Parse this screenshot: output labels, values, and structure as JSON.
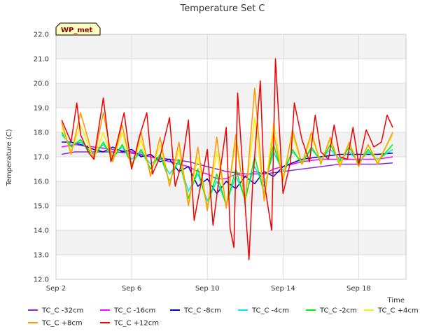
{
  "chart_data": {
    "type": "line",
    "title": "Temperature Set C",
    "xlabel": "Time",
    "ylabel": "Temperature (C)",
    "badge": "WP_met",
    "xlim": [
      0,
      18.5
    ],
    "ylim": [
      12.0,
      22.0
    ],
    "yticks": [
      "12.0",
      "13.0",
      "14.0",
      "15.0",
      "16.0",
      "17.0",
      "18.0",
      "19.0",
      "20.0",
      "21.0",
      "22.0"
    ],
    "xticks": [
      {
        "value": 0,
        "label": "Sep 2"
      },
      {
        "value": 4,
        "label": "Sep 6"
      },
      {
        "value": 8,
        "label": "Sep 10"
      },
      {
        "value": 12,
        "label": "Sep 14"
      },
      {
        "value": 16,
        "label": "Sep 18"
      }
    ],
    "series": [
      {
        "name": "TC_C -32cm",
        "color": "#8a2be2",
        "x": [
          0.3,
          1,
          2,
          3,
          4,
          5,
          6,
          7,
          8,
          9,
          10,
          11,
          12,
          13,
          14,
          15,
          16,
          17,
          17.8
        ],
        "y": [
          17.1,
          17.2,
          17.2,
          17.2,
          17.15,
          17.0,
          16.9,
          16.8,
          16.6,
          16.4,
          16.3,
          16.3,
          16.4,
          16.5,
          16.6,
          16.7,
          16.7,
          16.7,
          16.75
        ]
      },
      {
        "name": "TC_C -16cm",
        "color": "#ff00ff",
        "x": [
          0.3,
          1,
          2,
          3,
          4,
          5,
          6,
          7,
          7.5,
          8,
          8.5,
          9,
          9.5,
          10,
          10.5,
          11,
          11.5,
          12,
          13,
          14,
          15,
          16,
          17,
          17.8
        ],
        "y": [
          17.4,
          17.5,
          17.4,
          17.3,
          17.2,
          17.0,
          16.8,
          16.6,
          16.4,
          16.3,
          16.1,
          16.1,
          16.3,
          16.2,
          16.4,
          16.3,
          16.5,
          16.6,
          16.8,
          16.9,
          16.9,
          16.9,
          16.9,
          17.0
        ]
      },
      {
        "name": "TC_C -8cm",
        "color": "#0000cd",
        "x": [
          0.3,
          0.8,
          1.3,
          2,
          2.5,
          3,
          3.5,
          4,
          4.5,
          5,
          5.5,
          6,
          6.5,
          7,
          7.5,
          8,
          8.5,
          9,
          9.5,
          10,
          10.5,
          11,
          11.5,
          12,
          13,
          14,
          15,
          16,
          17,
          17.8
        ],
        "y": [
          17.6,
          17.6,
          17.5,
          17.3,
          17.2,
          17.4,
          17.2,
          17.3,
          17.0,
          17.1,
          16.8,
          16.9,
          16.4,
          16.6,
          15.8,
          16.1,
          15.5,
          16.0,
          15.7,
          16.2,
          15.9,
          16.4,
          16.2,
          16.6,
          16.9,
          17.0,
          17.1,
          17.1,
          17.1,
          17.15
        ]
      },
      {
        "name": "TC_C -4cm",
        "color": "#00e5ee",
        "x": [
          0.3,
          0.8,
          1.3,
          2,
          2.5,
          3,
          3.5,
          4,
          4.5,
          5,
          5.5,
          6,
          6.5,
          7,
          7.5,
          8,
          8.5,
          9,
          9.5,
          10,
          10.5,
          11,
          11.5,
          12,
          12.5,
          13,
          13.5,
          14,
          14.5,
          15,
          15.5,
          16,
          16.5,
          17,
          17.8
        ],
        "y": [
          17.9,
          17.5,
          17.6,
          17.1,
          17.5,
          17.0,
          17.4,
          16.9,
          17.2,
          16.7,
          17.0,
          16.3,
          16.8,
          15.6,
          16.3,
          15.2,
          16.0,
          15.1,
          16.2,
          15.4,
          16.6,
          15.8,
          17.2,
          16.4,
          17.2,
          16.8,
          17.3,
          16.9,
          17.3,
          16.9,
          17.2,
          16.8,
          17.2,
          16.9,
          17.3
        ]
      },
      {
        "name": "TC_C -2cm",
        "color": "#00ee00",
        "x": [
          0.3,
          0.8,
          1.3,
          2,
          2.5,
          3,
          3.5,
          4,
          4.5,
          5,
          5.5,
          6,
          6.5,
          7,
          7.5,
          8,
          8.5,
          9,
          9.5,
          10,
          10.5,
          11,
          11.5,
          12,
          12.5,
          13,
          13.5,
          14,
          14.5,
          15,
          15.5,
          16,
          16.5,
          17,
          17.8
        ],
        "y": [
          18.0,
          17.4,
          17.7,
          17.0,
          17.6,
          16.9,
          17.5,
          16.7,
          17.3,
          16.5,
          17.1,
          16.0,
          16.9,
          15.3,
          16.5,
          15.0,
          16.3,
          15.0,
          16.5,
          15.2,
          17.0,
          15.5,
          17.5,
          16.2,
          17.3,
          16.7,
          17.4,
          16.8,
          17.5,
          16.8,
          17.4,
          16.7,
          17.3,
          16.8,
          17.5
        ]
      },
      {
        "name": "TC_C +4cm",
        "color": "#ffee00",
        "x": [
          0.3,
          0.8,
          1.3,
          2,
          2.5,
          3,
          3.5,
          4,
          4.5,
          5,
          5.5,
          6,
          6.5,
          7,
          7.5,
          8,
          8.5,
          9,
          9.5,
          10,
          10.5,
          11,
          11.5,
          12,
          12.5,
          13,
          13.5,
          14,
          14.5,
          15,
          15.5,
          16,
          16.5,
          17,
          17.8
        ],
        "y": [
          18.2,
          17.2,
          18.3,
          16.9,
          18.0,
          16.8,
          18.0,
          16.6,
          17.7,
          16.3,
          17.5,
          15.9,
          17.3,
          15.1,
          17.0,
          14.9,
          17.2,
          15.0,
          17.6,
          15.2,
          18.6,
          15.3,
          18.4,
          16.2,
          17.9,
          16.7,
          17.8,
          16.8,
          17.7,
          16.7,
          17.6,
          16.6,
          17.5,
          16.8,
          17.9
        ]
      },
      {
        "name": "TC_C +8cm",
        "color": "#ff9900",
        "x": [
          0.3,
          0.8,
          1.3,
          2,
          2.5,
          3,
          3.5,
          4,
          4.5,
          5,
          5.5,
          6,
          6.5,
          7,
          7.5,
          8,
          8.5,
          9,
          9.5,
          10,
          10.5,
          11,
          11.5,
          12,
          12.5,
          13,
          13.5,
          14,
          14.5,
          15,
          15.5,
          16,
          16.5,
          17,
          17.8
        ],
        "y": [
          18.4,
          17.1,
          18.8,
          16.9,
          18.8,
          16.8,
          18.3,
          16.5,
          18.0,
          16.2,
          17.8,
          15.8,
          17.6,
          15.0,
          17.4,
          14.8,
          17.8,
          14.9,
          17.9,
          15.1,
          19.8,
          15.2,
          18.0,
          16.0,
          18.1,
          16.7,
          18.0,
          16.7,
          17.8,
          16.6,
          17.6,
          16.6,
          17.5,
          16.7,
          18.0
        ]
      },
      {
        "name": "TC_C +12cm",
        "color": "#ee0000",
        "x": [
          0.3,
          0.8,
          1.1,
          1.3,
          1.7,
          2,
          2.5,
          2.9,
          3.2,
          3.6,
          4,
          4.4,
          4.8,
          5.1,
          5.5,
          6,
          6.3,
          6.7,
          7,
          7.3,
          7.8,
          8,
          8.3,
          8.6,
          9,
          9.2,
          9.4,
          9.6,
          10,
          10.2,
          10.4,
          10.8,
          11,
          11.4,
          11.6,
          12,
          12.4,
          12.6,
          13,
          13.4,
          13.7,
          14,
          14.4,
          14.7,
          15,
          15.4,
          15.7,
          16,
          16.4,
          16.8,
          17.2,
          17.5,
          17.8
        ],
        "y": [
          18.5,
          17.6,
          19.2,
          17.9,
          17.2,
          16.9,
          19.4,
          16.8,
          17.5,
          18.8,
          16.5,
          17.8,
          18.8,
          16.3,
          17.0,
          18.6,
          15.8,
          16.9,
          18.5,
          14.4,
          16.5,
          17.3,
          14.2,
          16.0,
          18.2,
          14.1,
          13.3,
          19.6,
          15.0,
          12.8,
          16.0,
          20.1,
          16.0,
          14.0,
          21.0,
          15.5,
          16.8,
          19.2,
          17.7,
          16.8,
          18.7,
          17.2,
          16.9,
          18.3,
          17.0,
          16.9,
          18.2,
          16.7,
          18.1,
          17.4,
          17.6,
          18.7,
          18.2
        ]
      }
    ]
  }
}
